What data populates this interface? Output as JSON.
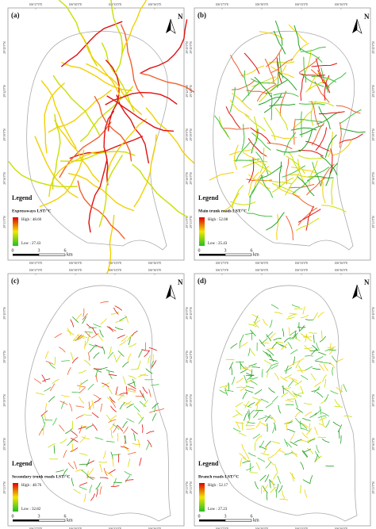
{
  "lon_labels": [
    "106°27'0\"E",
    "106°30'0\"E",
    "106°33'0\"E",
    "106°36'0\"E"
  ],
  "lat_labels": [
    "29°45'0\"N",
    "29°42'0\"N",
    "29°39'0\"N",
    "29°36'0\"N",
    "29°33'0\"N"
  ],
  "north": "N",
  "legend_title": "Legend",
  "scale": {
    "labels": [
      "0",
      "3",
      "6"
    ],
    "unit": "km"
  },
  "panels": [
    {
      "label": "(a)",
      "title": "Expressways LST/°C",
      "high": "High : 48.60",
      "low": "Low : 27.43"
    },
    {
      "label": "(b)",
      "title": "Main trunk roads LST/°C",
      "high": "High : 52.08",
      "low": "Low : 25.43"
    },
    {
      "label": "(c)",
      "title": "Secondary trunk roads LST/°C",
      "high": "High : 48.76",
      "low": "Low : 32.82"
    },
    {
      "label": "(d)",
      "title": "Branch roads LST/°C",
      "high": "High : 52.17",
      "low": "Low : 27.23"
    }
  ]
}
